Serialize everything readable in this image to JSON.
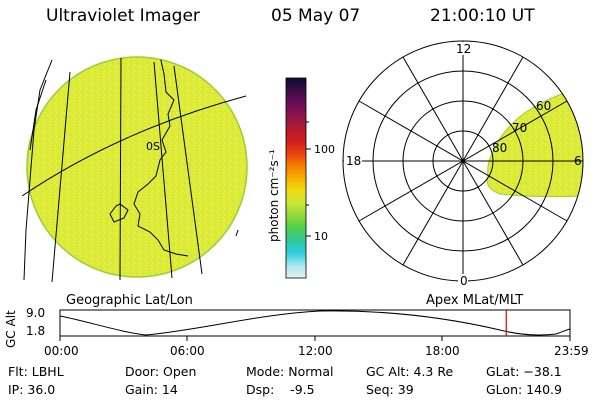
{
  "header": {
    "instrument": "Ultraviolet Imager",
    "date": "05 May 07",
    "time": "21:00:10 UT"
  },
  "map_left": {
    "caption": "Geographic Lat/Lon",
    "marker": "0S"
  },
  "colorbar": {
    "unit_label": "photon cm⁻²s⁻¹",
    "tick_labels": [
      "100",
      "10"
    ],
    "colors_top_to_bottom": [
      "#0c0c30",
      "#3c0d4a",
      "#6a0c55",
      "#8e1450",
      "#b01c2a",
      "#cf1e1e",
      "#e84010",
      "#f57c00",
      "#f7b000",
      "#f2dc10",
      "#c8e634",
      "#8fd83a",
      "#4ecf4a",
      "#2ec89a",
      "#2fcde0",
      "#a8e8ee",
      "#e6f2f2"
    ]
  },
  "map_right": {
    "caption": "Apex MLat/MLT",
    "mlt_labels": [
      "12",
      "18",
      "6",
      "0"
    ],
    "lat_labels": [
      "60",
      "70",
      "80"
    ]
  },
  "timeline": {
    "axis_label": "GC Alt",
    "y_ticks": [
      "9.0",
      "1.8"
    ],
    "x_ticks": [
      "00:00",
      "06:00",
      "12:00",
      "18:00",
      "23:59"
    ],
    "current_marker_hours": 21.0
  },
  "status": {
    "flt": "Flt: LBHL",
    "ip": "IP: 36.0",
    "door": "Door: Open",
    "gain": "Gain: 14",
    "mode": "Mode: Normal",
    "dsp": "Dsp:    -9.5",
    "gcalt": "GC Alt: 4.3 Re",
    "seq": "Seq: 39",
    "glat": "GLat: −38.1",
    "glon": "GLon: 140.9"
  },
  "colors": {
    "disk_fill": "#dcea38",
    "marker": "#e00000"
  }
}
